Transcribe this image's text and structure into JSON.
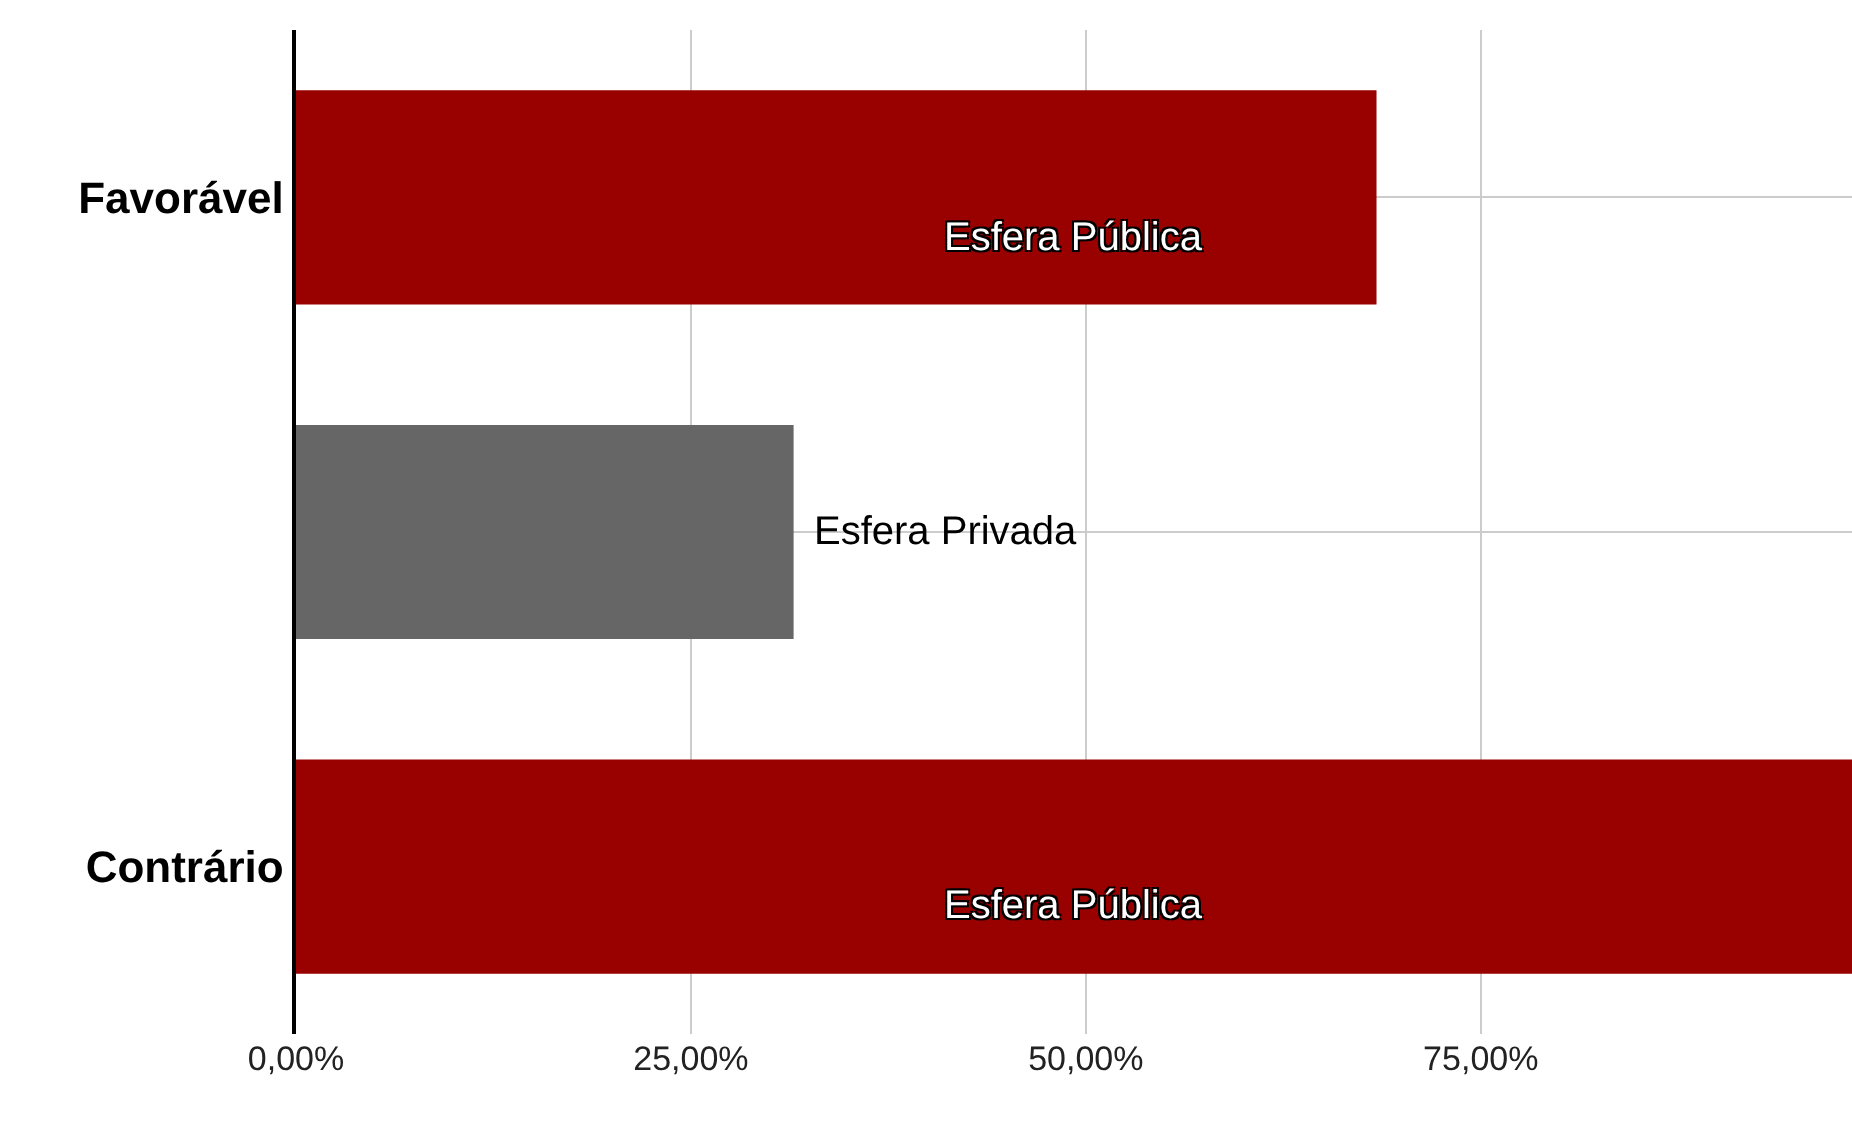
{
  "chart_data": {
    "type": "bar",
    "orientation": "horizontal",
    "categories": [
      "Favorável",
      null,
      "Contrário"
    ],
    "series": [
      {
        "name": "Esfera Pública",
        "color": "#990000",
        "values": [
          68.4,
          null,
          98.5
        ]
      },
      {
        "name": "Esfera Privada",
        "color": "#666666",
        "values": [
          null,
          31.5,
          null
        ]
      }
    ],
    "xlim": [
      0,
      98.5
    ],
    "xticks": [
      {
        "value": 0,
        "label": "0,00%"
      },
      {
        "value": 25,
        "label": "25,00%"
      },
      {
        "value": 50,
        "label": "50,00%"
      },
      {
        "value": 75,
        "label": "75,00%"
      }
    ],
    "grid": true,
    "legend": false
  }
}
